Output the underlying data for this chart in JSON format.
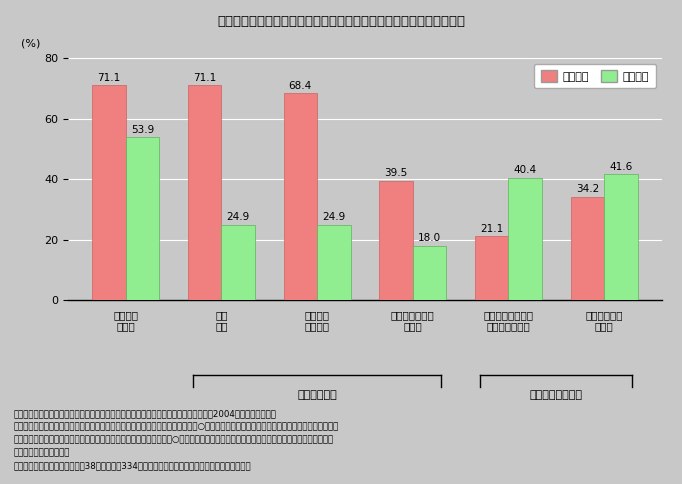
{
  "title": "第３－２－５図　広域型の都道府県委託、地域密着型の市区町村委託",
  "todofuken_values": [
    71.1,
    71.1,
    68.4,
    39.5,
    21.1,
    34.2
  ],
  "shikuchoson_values": [
    53.9,
    24.9,
    24.9,
    18.0,
    40.4,
    41.6
  ],
  "todofuken_color": "#F08080",
  "shikuchoson_color": "#90EE90",
  "background_color": "#C8C8C8",
  "ylim": [
    0,
    80
  ],
  "yticks": [
    0,
    20,
    40,
    60,
    80
  ],
  "ylabel": "(%)",
  "legend_todofuken": "都道府県",
  "legend_shikuchoson": "市区町村",
  "bracket1_label": "広域型の委託",
  "bracket2_label": "地域密着型の委託",
  "x_labels": [
    "イベント\nの実施",
    "調査\n研究",
    "専門的な\n相談事業",
    "情報誌・刊行物\nの作成",
    "介護・家事援助等\nのサービス提供",
    "自治体の施設\nの運営"
  ],
  "note_lines": [
    "（備考）１．内閣府「コミュニティ再興に向けた協働のあり方に関するアンケート」（2004年）により作成。",
    "　　　　２．「貴自治体における協働事業は下記のどの形態に該当しますか？（○はいくつでも）」という問のうち「自治体からＮＰＯへの",
    "　　　　　業務委託」を選んだ地方公共団体に更に「具体的には？（○はいくつでも）」と尋ねた問に対して回答した都道府県および市区",
    "　　　　　町村の割合。",
    "　　　　３．回答した団体は、38都道府県、334市区町村（「その他」の図中への記載は省略）。"
  ]
}
